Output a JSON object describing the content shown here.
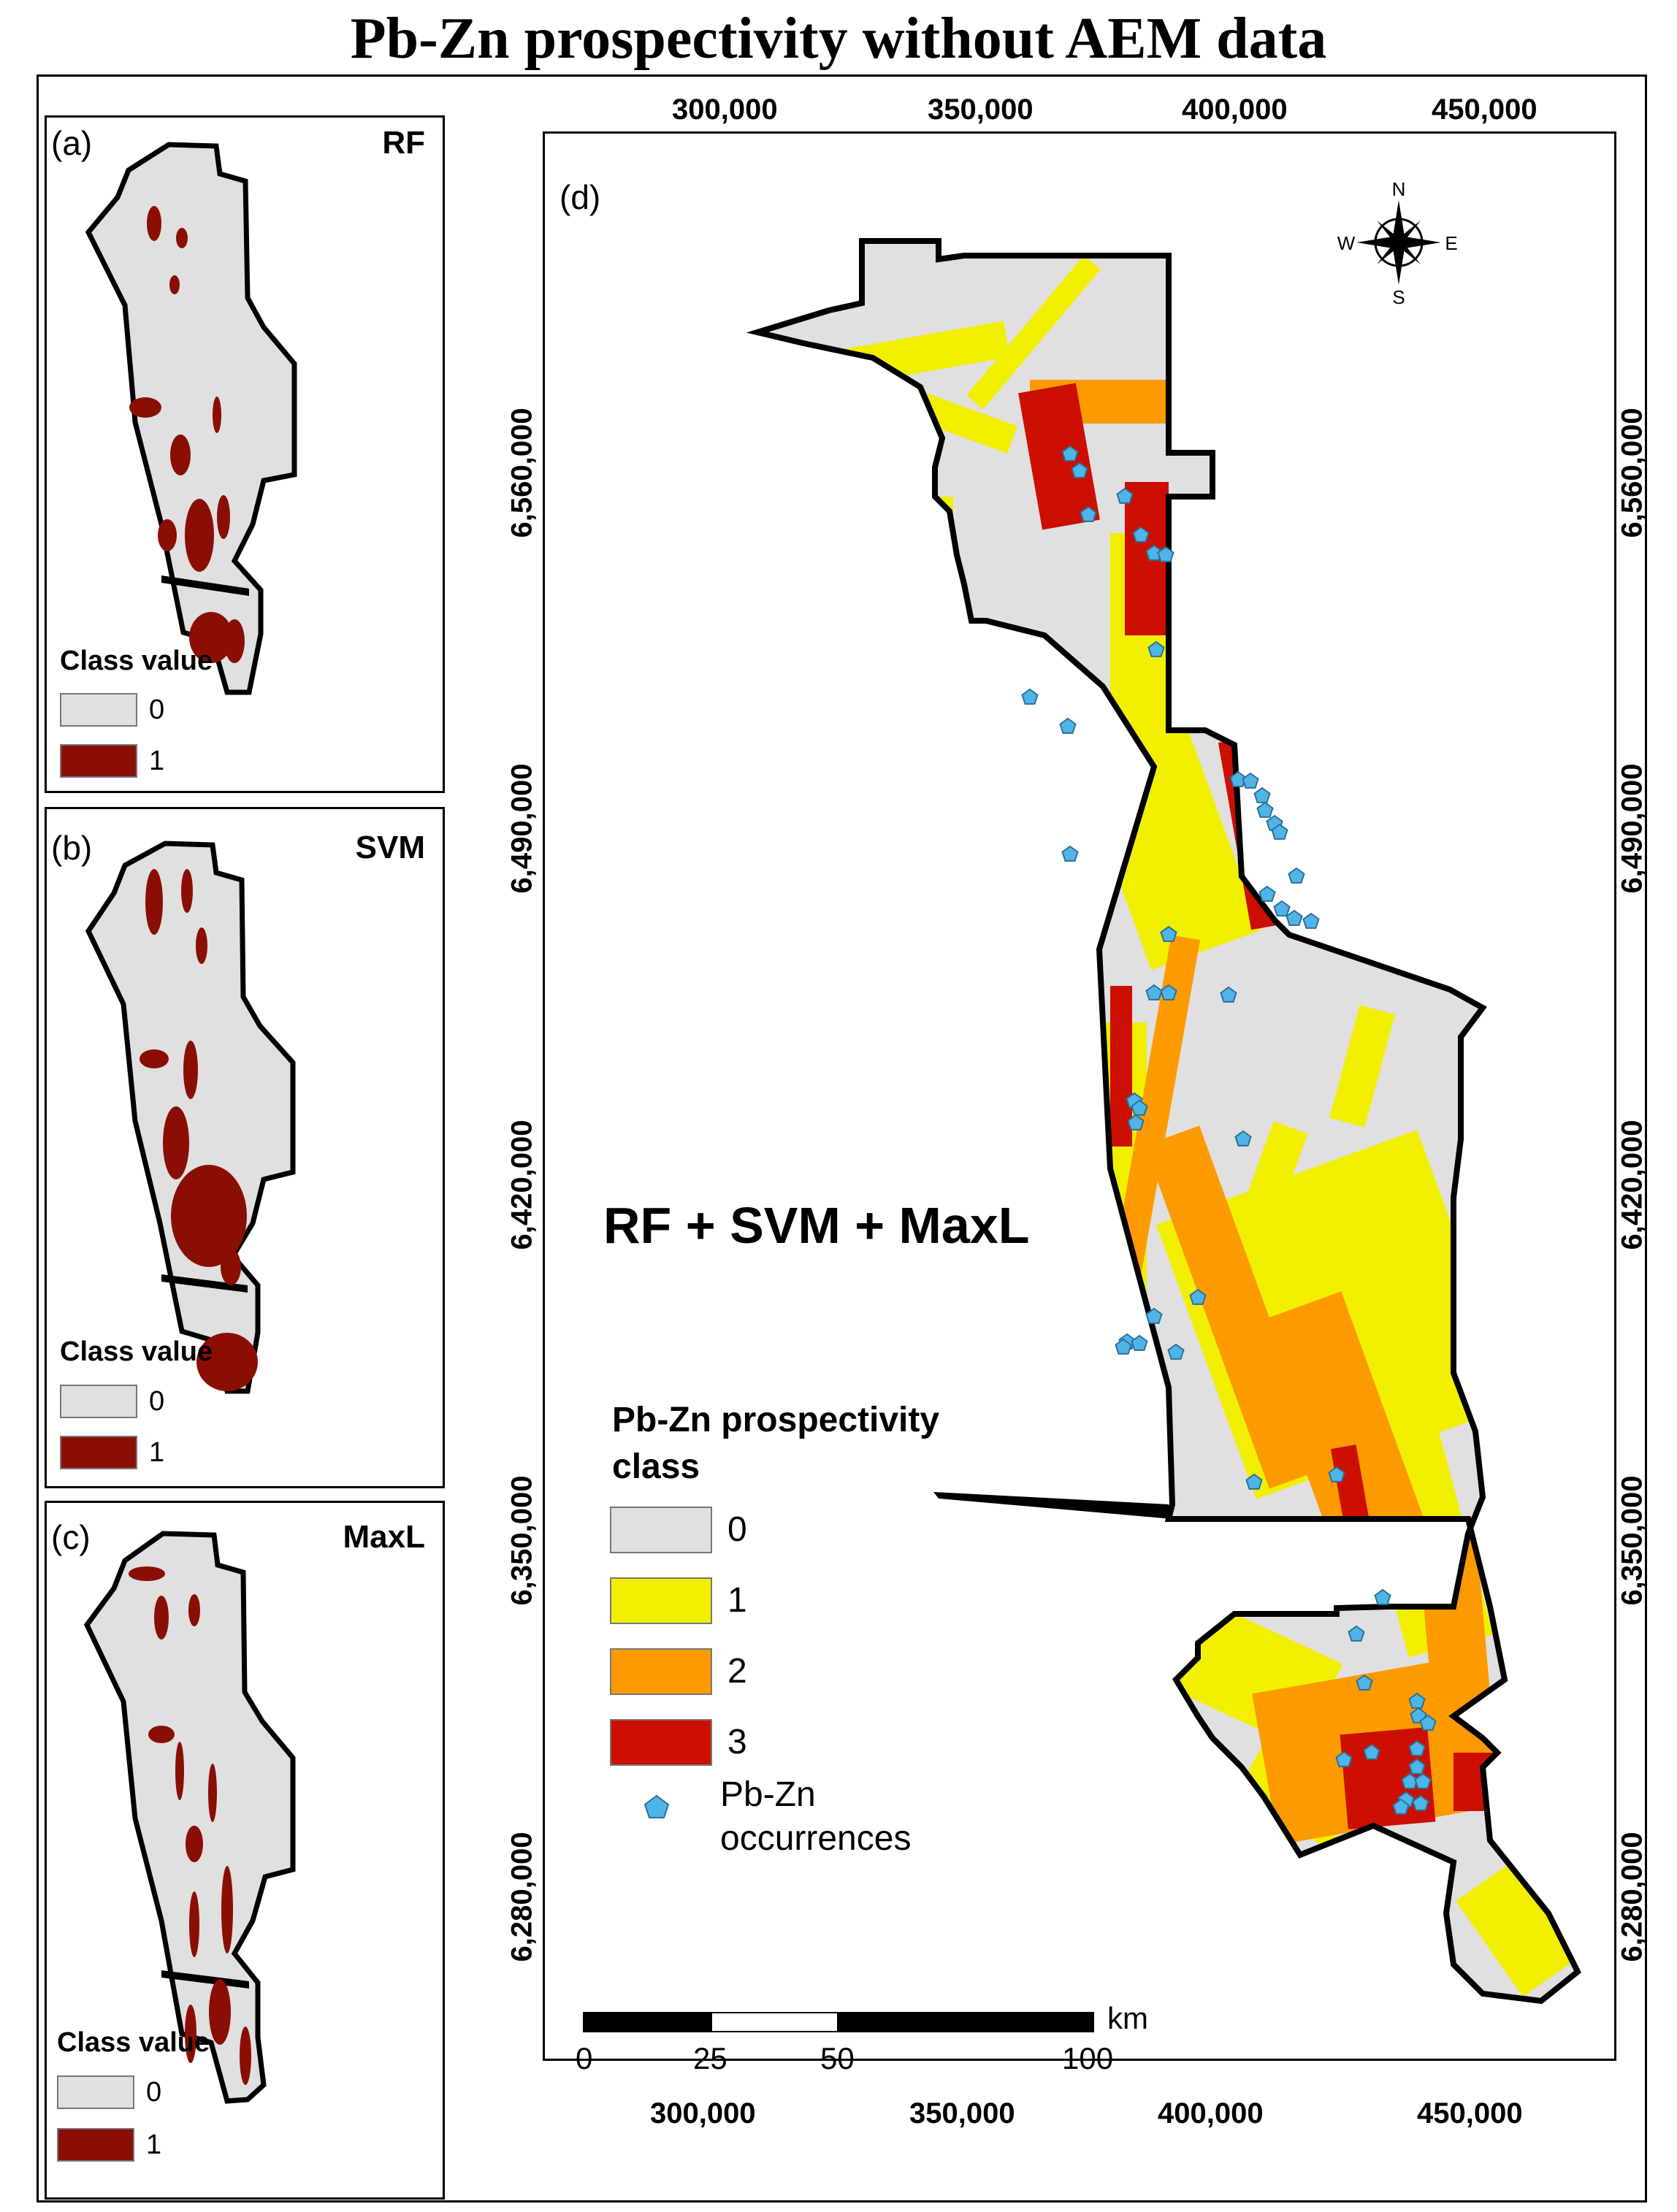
{
  "title": "Pb-Zn prospectivity without AEM data",
  "panels": [
    {
      "letter": "(a)",
      "method": "RF",
      "legend_title": "Class value",
      "classes": [
        {
          "value": "0",
          "color": "#e0e0e0"
        },
        {
          "value": "1",
          "color": "#8b0e04"
        }
      ]
    },
    {
      "letter": "(b)",
      "method": "SVM",
      "legend_title": "Class value",
      "classes": [
        {
          "value": "0",
          "color": "#e0e0e0"
        },
        {
          "value": "1",
          "color": "#8b0e04"
        }
      ]
    },
    {
      "letter": "(c)",
      "method": "MaxL",
      "legend_title": "Class value",
      "classes": [
        {
          "value": "0",
          "color": "#e0e0e0"
        },
        {
          "value": "1",
          "color": "#8b0e04"
        }
      ]
    }
  ],
  "main": {
    "letter": "(d)",
    "combo_label": "RF + SVM + MaxL",
    "legend_title_line1": "Pb-Zn prospectivity",
    "legend_title_line2": "class",
    "classes": [
      {
        "value": "0",
        "color": "#e0e0e0"
      },
      {
        "value": "1",
        "color": "#f2ef00"
      },
      {
        "value": "2",
        "color": "#fd9a00"
      },
      {
        "value": "3",
        "color": "#cc0f00"
      }
    ],
    "occurrence_label_line1": "Pb-Zn",
    "occurrence_label_line2": "occurrences",
    "occurrence_color": "#4fb5e8",
    "x_ticks": [
      "300,000",
      "350,000",
      "400,000",
      "450,000"
    ],
    "y_ticks": [
      "6,560,000",
      "6,490,000",
      "6,420,000",
      "6,350,000",
      "6,280,000"
    ],
    "scale_bar": {
      "unit": "km",
      "labels": [
        "0",
        "25",
        "50",
        "100"
      ]
    },
    "north_arrow": {
      "n": "N",
      "s": "S",
      "e": "E",
      "w": "W"
    }
  }
}
